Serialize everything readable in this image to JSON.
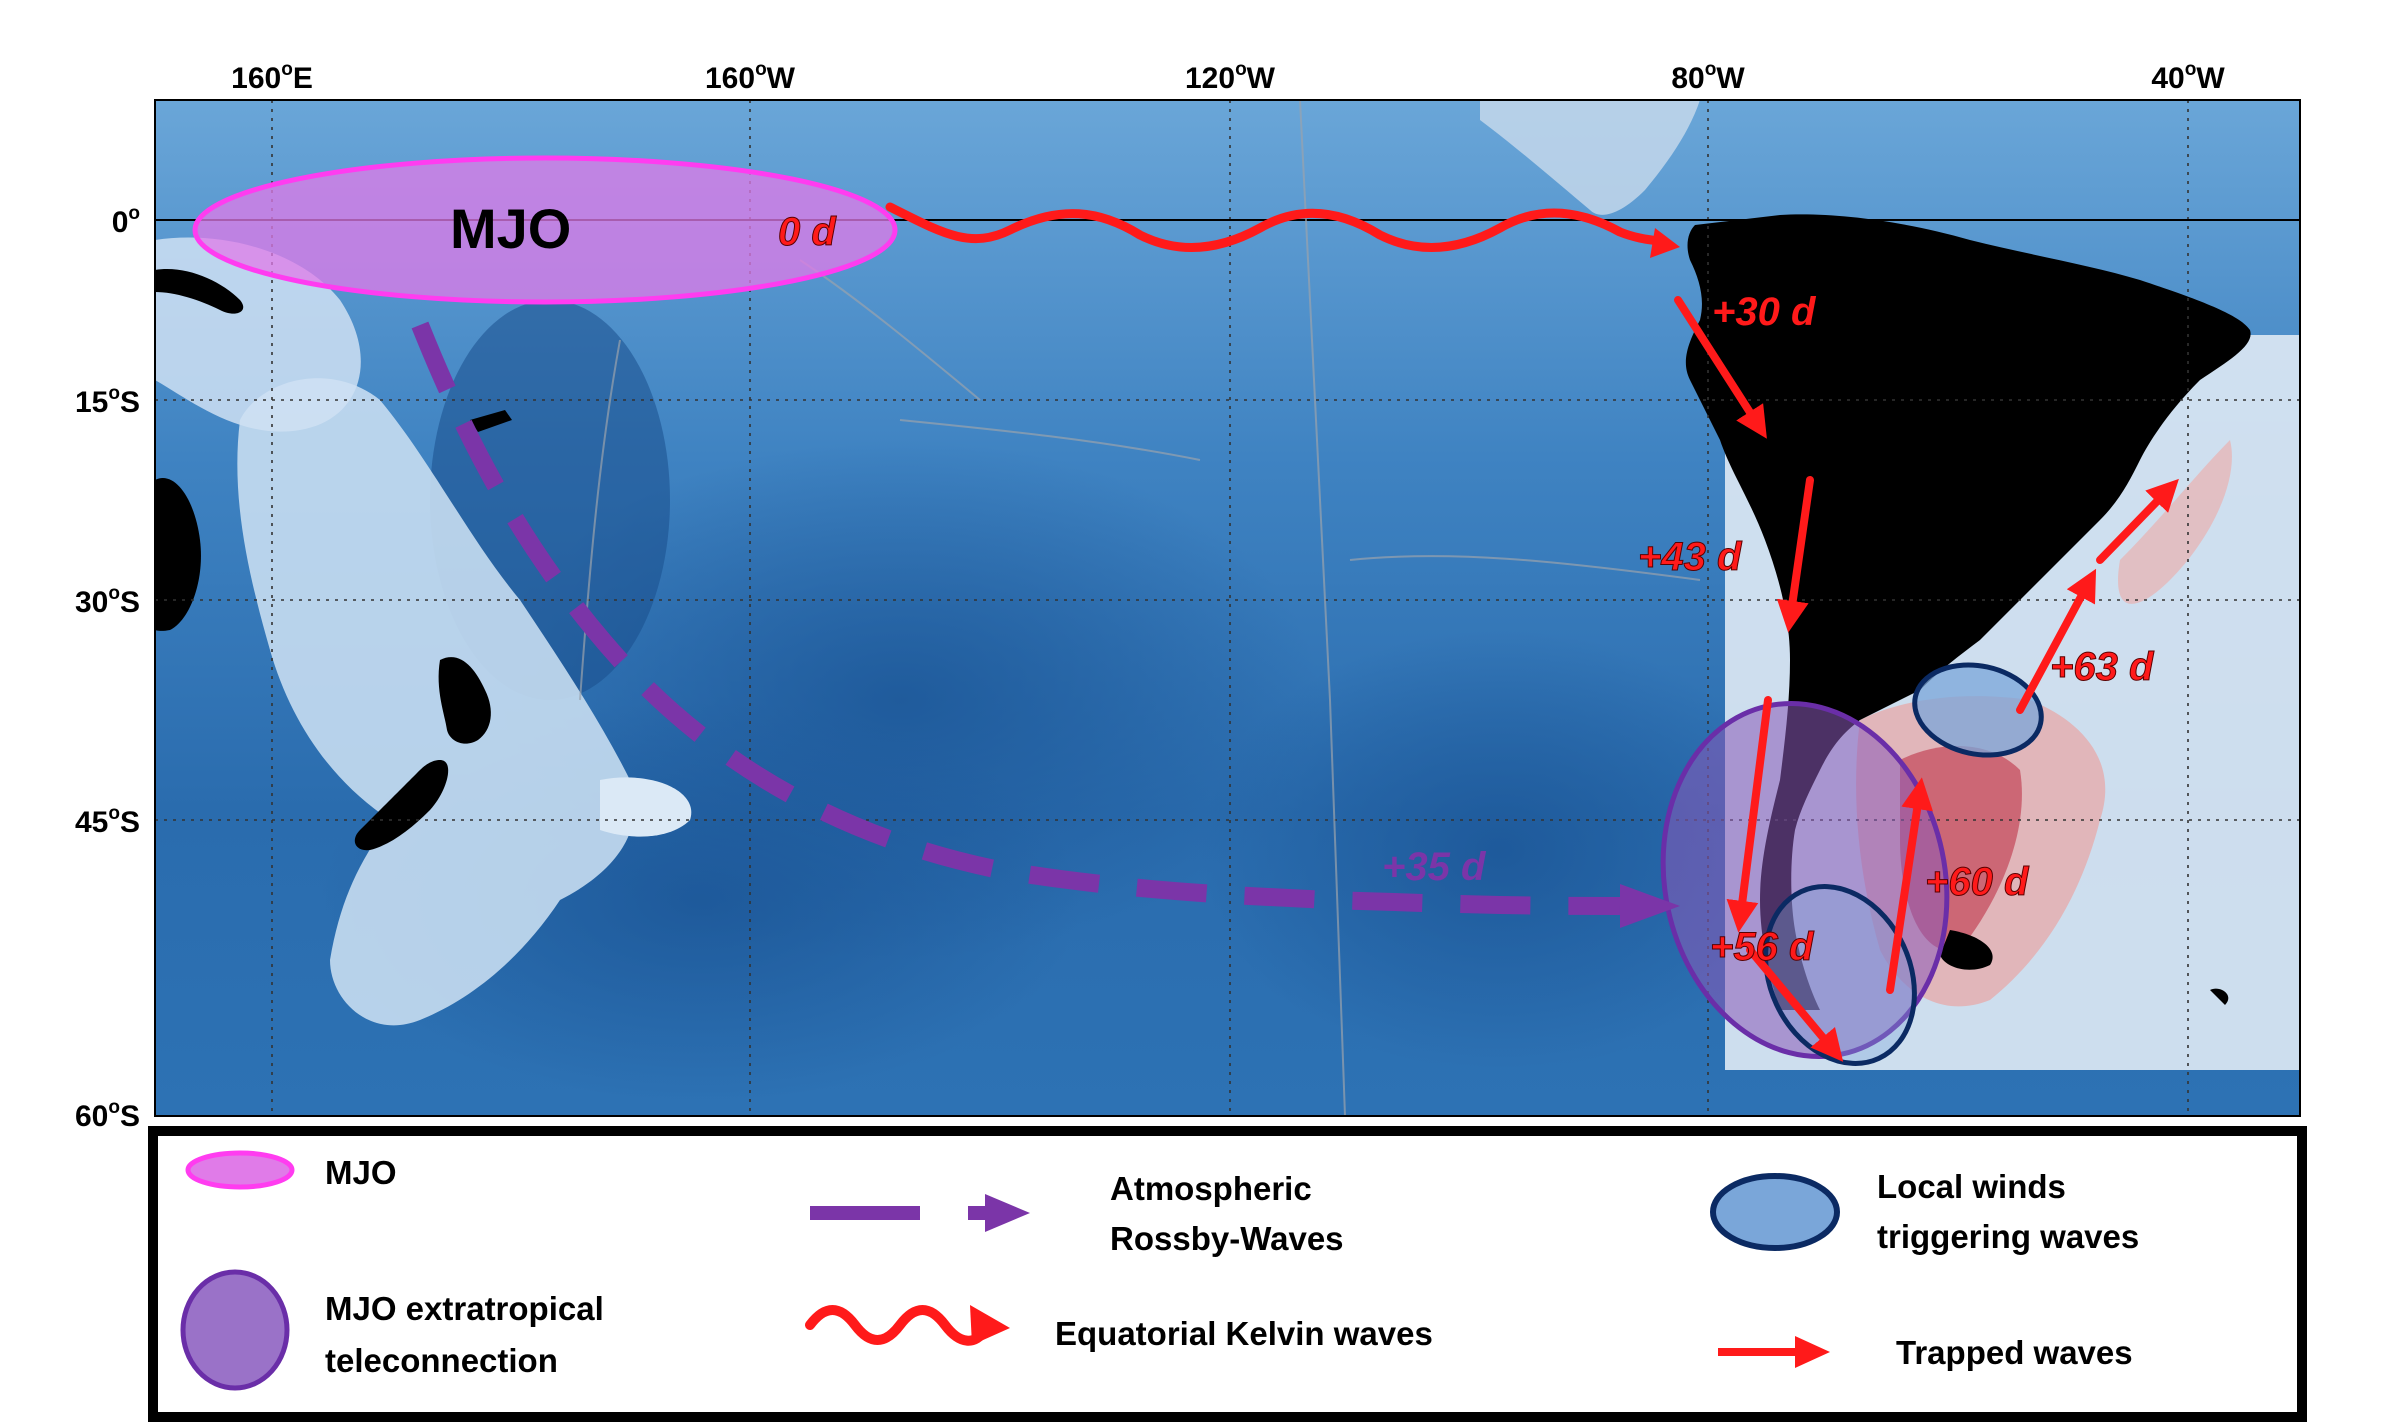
{
  "axes": {
    "x_ticks": [
      {
        "num": "160",
        "sup": "o",
        "dir": "E"
      },
      {
        "num": "160",
        "sup": "o",
        "dir": "W"
      },
      {
        "num": "120",
        "sup": "o",
        "dir": "W"
      },
      {
        "num": "80",
        "sup": "o",
        "dir": "W"
      },
      {
        "num": "40",
        "sup": "o",
        "dir": "W"
      }
    ],
    "y_ticks": [
      {
        "num": "0",
        "sup": "o",
        "dir": ""
      },
      {
        "num": "15",
        "sup": "o",
        "dir": "S"
      },
      {
        "num": "30",
        "sup": "o",
        "dir": "S"
      },
      {
        "num": "45",
        "sup": "o",
        "dir": "S"
      },
      {
        "num": "60",
        "sup": "o",
        "dir": "S"
      }
    ]
  },
  "annotations": {
    "mjo": "MJO",
    "day_0": "0 d",
    "day_30": "+30 d",
    "day_43": "+43 d",
    "day_35": "+35 d",
    "day_56": "+56 d",
    "day_60": "+60 d",
    "day_63": "+63 d"
  },
  "legend": {
    "mjo": "MJO",
    "teleconnection_line1": "MJO extratropical",
    "teleconnection_line2": "teleconnection",
    "rossby_line1": "Atmospheric",
    "rossby_line2": "Rossby-Waves",
    "kelvin": "Equatorial Kelvin waves",
    "local_line1": "Local winds",
    "local_line2": "triggering waves",
    "trapped": "Trapped waves"
  },
  "colors": {
    "mjo_fill": "#e07be8",
    "mjo_stroke": "#ff3cf0",
    "teleconnection_fill": "#8a5ab8",
    "teleconnection_stroke": "#6a2ea8",
    "rossby": "#7b35a8",
    "kelvin": "#ff1a1a",
    "local_stroke": "#0b2a63",
    "local_fill": "#7aa6d9",
    "ocean_deep": "#1f5f9e",
    "ocean_mid": "#4a8cc9",
    "ocean_shallow": "#cfe3f5",
    "land": "#000000"
  }
}
